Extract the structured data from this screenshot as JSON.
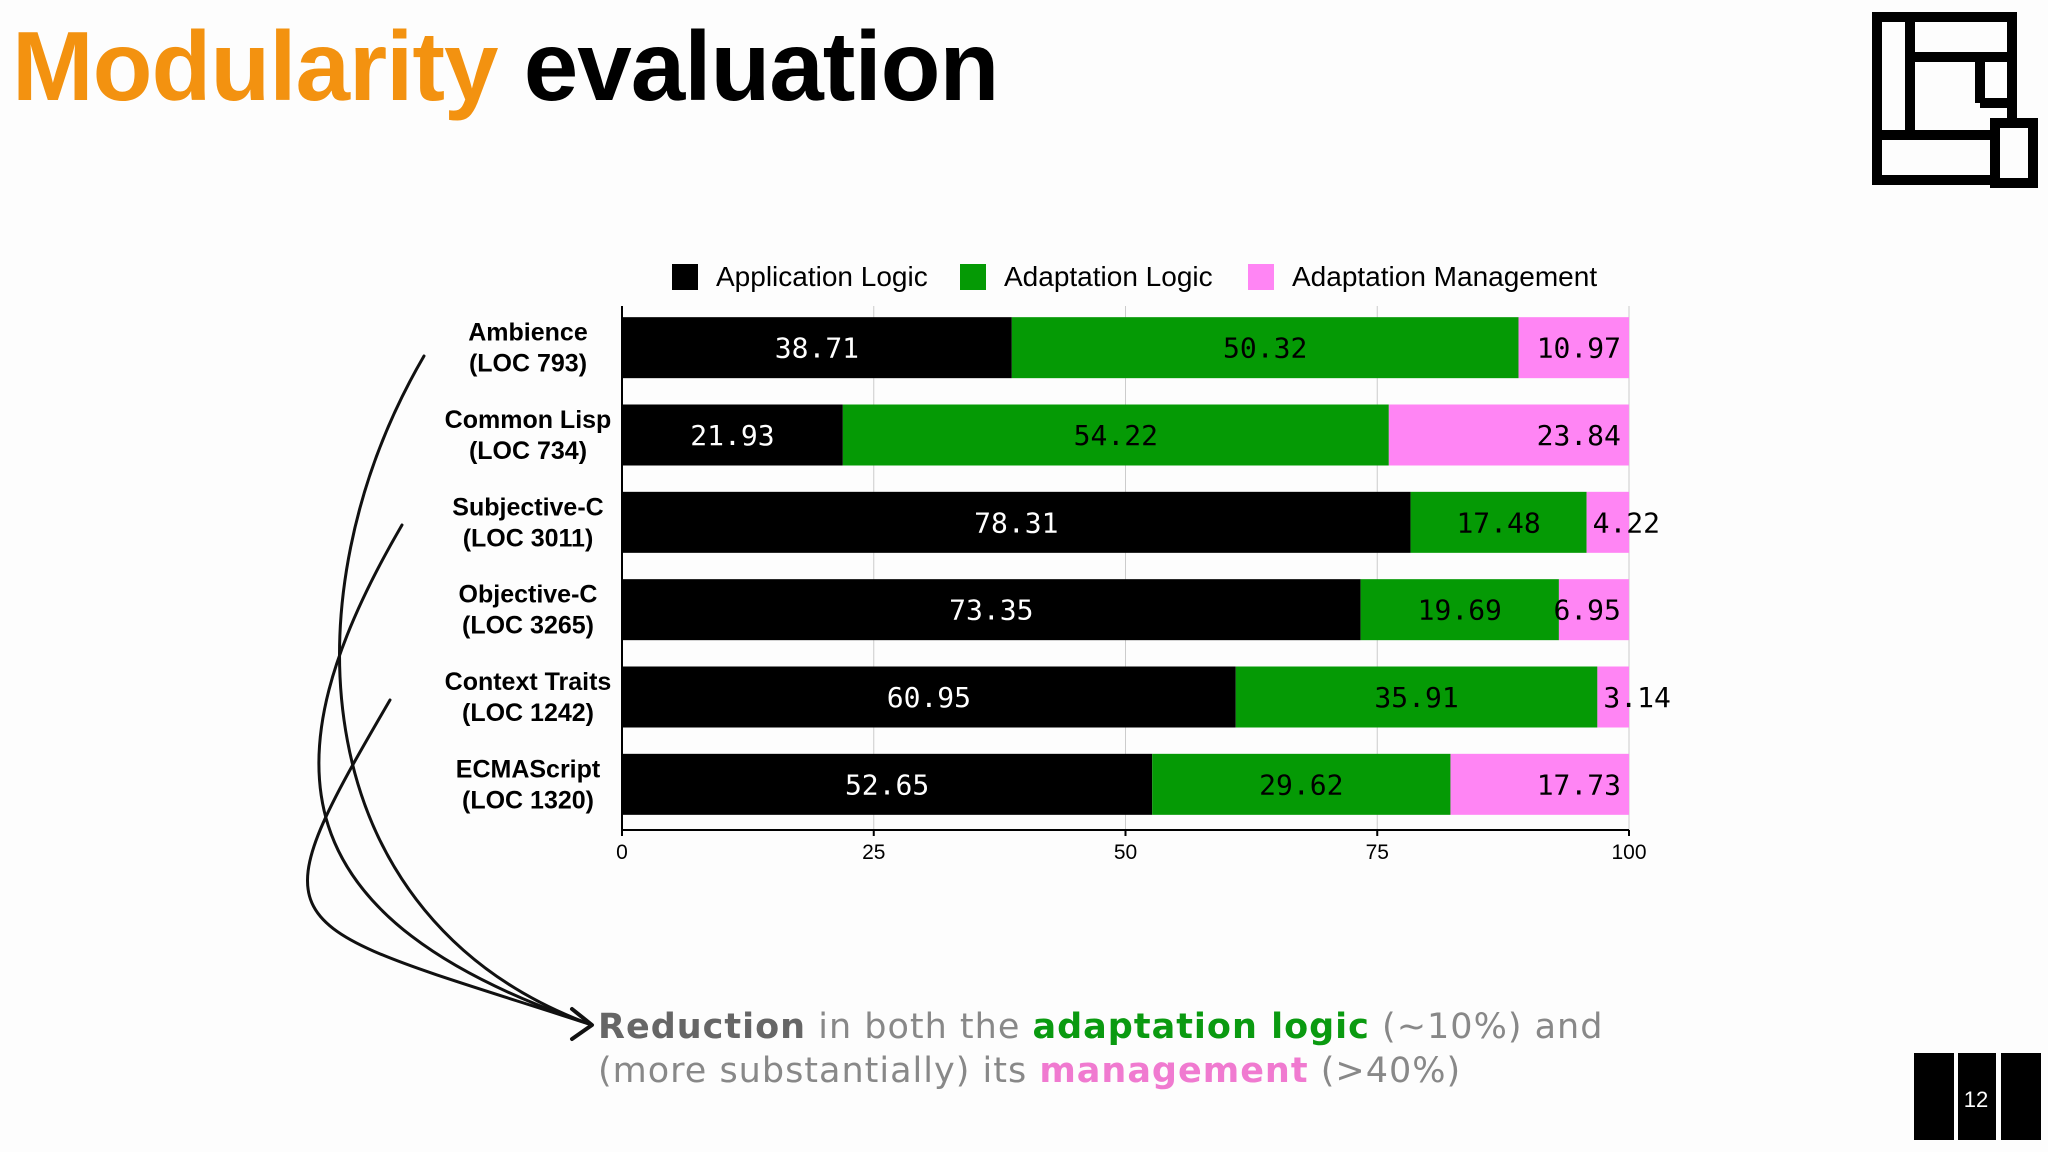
{
  "title": {
    "accent": "Modularity",
    "rest": "evaluation"
  },
  "colors": {
    "accent": "#f39210",
    "application": "#000000",
    "adaptation": "#059a05",
    "management": "#ff85f4"
  },
  "chart_data": {
    "type": "bar",
    "orientation": "horizontal",
    "stacked": true,
    "categories": [
      [
        "Ambience",
        "(LOC 793)"
      ],
      [
        "Common Lisp",
        "(LOC 734)"
      ],
      [
        "Subjective-C",
        "(LOC 3011)"
      ],
      [
        "Objective-C",
        "(LOC 3265)"
      ],
      [
        "Context Traits",
        "(LOC 1242)"
      ],
      [
        "ECMAScript",
        "(LOC 1320)"
      ]
    ],
    "series": [
      {
        "name": "Application Logic",
        "color": "#000000",
        "label_color": "#ffffff",
        "values": [
          38.71,
          21.93,
          78.31,
          73.35,
          60.95,
          52.65
        ]
      },
      {
        "name": "Adaptation Logic",
        "color": "#059a05",
        "label_color": "#000000",
        "values": [
          50.32,
          54.22,
          17.48,
          19.69,
          35.91,
          29.62
        ]
      },
      {
        "name": "Adaptation Management",
        "color": "#ff85f4",
        "label_color": "#000000",
        "values": [
          10.97,
          23.84,
          4.22,
          6.95,
          3.14,
          17.73
        ]
      }
    ],
    "labels": [
      [
        "38.71",
        "50.32",
        "10.97"
      ],
      [
        "21.93",
        "54.22",
        "23.84"
      ],
      [
        "78.31",
        "17.48",
        "4.22"
      ],
      [
        "73.35",
        "19.69",
        "6.95"
      ],
      [
        "60.95",
        "35.91",
        "3.14"
      ],
      [
        "52.65",
        "29.62",
        "17.73"
      ]
    ],
    "xlim": [
      0,
      100
    ],
    "xticks": [
      "0",
      "25",
      "50",
      "75",
      "100"
    ],
    "legend_position": "top",
    "grid": "vertical"
  },
  "caption": {
    "reduction": "Reduction",
    "part1": " in both the ",
    "adaptation_logic": "adaptation logic",
    "part2": " (~10%) and",
    "part3": "(more substantially) its ",
    "management": "management",
    "part4": " (>40%)"
  },
  "page_number": "12"
}
